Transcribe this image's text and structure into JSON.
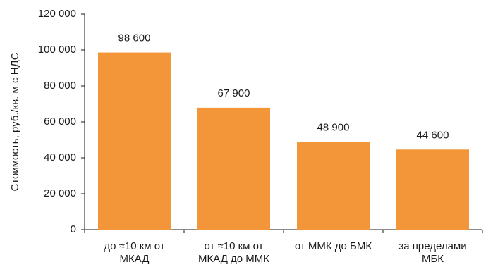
{
  "chart_data": {
    "type": "bar",
    "categories": [
      [
        "до ≈10 км от",
        "МКАД"
      ],
      [
        "от ≈10 км от",
        "МКАД до ММК"
      ],
      [
        "от ММК до БМК"
      ],
      [
        "за пределами",
        "МБК"
      ]
    ],
    "values": [
      98600,
      67900,
      48900,
      44600
    ],
    "value_labels": [
      "98 600",
      "67 900",
      "48 900",
      "44 600"
    ],
    "ylabel": "Стоимость, руб./кв. м с НДС",
    "ylim": [
      0,
      120000
    ],
    "yticks": [
      0,
      20000,
      40000,
      60000,
      80000,
      100000,
      120000
    ],
    "ytick_labels": [
      "0",
      "20 000",
      "40 000",
      "60 000",
      "80 000",
      "100 000",
      "120 000"
    ],
    "grid": false,
    "legend": "none",
    "colors": {
      "bar": "#F39639",
      "axis": "#1a1a1a",
      "text": "#1a1a1a"
    }
  }
}
